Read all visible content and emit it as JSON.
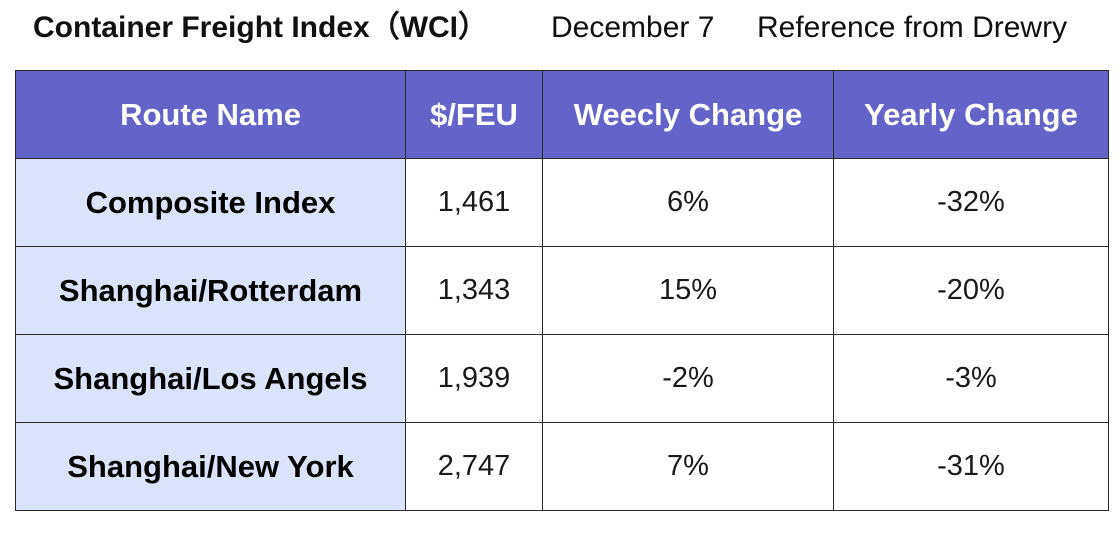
{
  "header": {
    "title": "Container Freight Index（WCI）",
    "date": "December 7",
    "source": "Reference from Drewry"
  },
  "table": {
    "columns": [
      "Route Name",
      "$/FEU",
      "Weecly Change",
      "Yearly Change"
    ],
    "rows": [
      {
        "route": "Composite Index",
        "price": "1,461",
        "weekly": "6%",
        "yearly": "-32%"
      },
      {
        "route": "Shanghai/Rotterdam",
        "price": "1,343",
        "weekly": "15%",
        "yearly": "-20%"
      },
      {
        "route": "Shanghai/Los Angels",
        "price": "1,939",
        "weekly": "-2%",
        "yearly": "-3%"
      },
      {
        "route": "Shanghai/New York",
        "price": "2,747",
        "weekly": "7%",
        "yearly": "-31%"
      }
    ],
    "colors": {
      "header_bg": "#6464c8",
      "route_bg": "#dbe3fb"
    }
  }
}
